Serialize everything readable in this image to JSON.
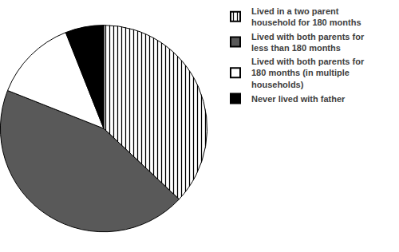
{
  "chart_data": {
    "type": "pie",
    "categories": [
      "Lived in a two parent household for 180 months",
      "Lived with both parents for less than 180 months",
      "Lived with both parents for 180 months (in multiple households)",
      "Never lived with father"
    ],
    "values": [
      37,
      44,
      13,
      6
    ],
    "colors": [
      "#ffffff",
      "#595959",
      "#ffffff",
      "#000000"
    ],
    "legend": "right"
  }
}
